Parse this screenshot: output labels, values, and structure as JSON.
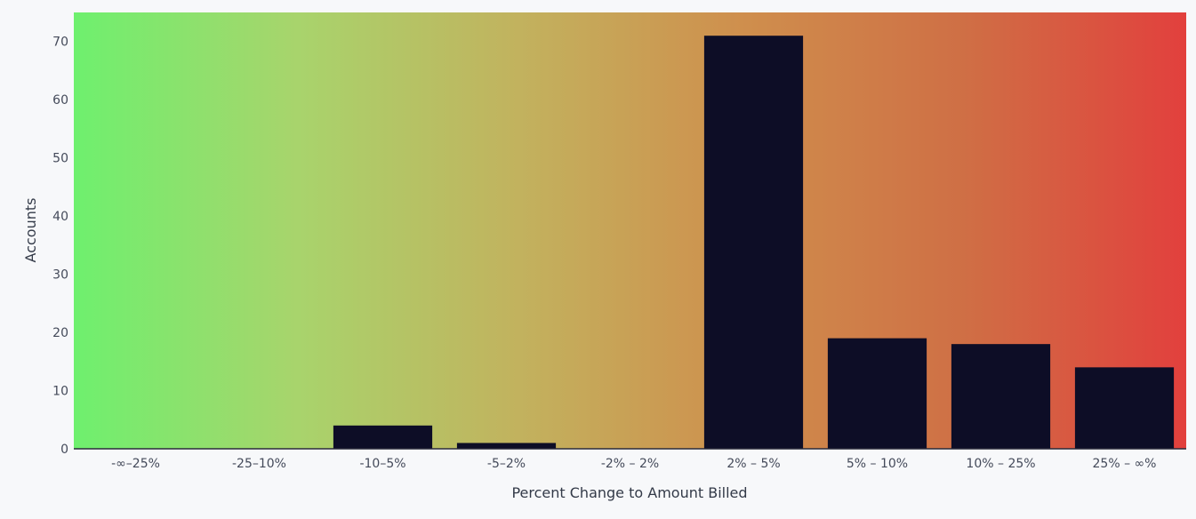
{
  "chart_data": {
    "type": "bar",
    "title": "",
    "xlabel": "Percent Change to Amount Billed",
    "ylabel": "Accounts",
    "categories": [
      "-∞–25%",
      "-25–10%",
      "-10–5%",
      "-5–2%",
      "-2% – 2%",
      "2% – 5%",
      "5% – 10%",
      "10% – 25%",
      "25% – ∞%"
    ],
    "values": [
      0,
      0,
      4,
      1,
      0,
      71,
      19,
      18,
      14
    ],
    "ylim": [
      0,
      75
    ],
    "yticks": [
      0,
      10,
      20,
      30,
      40,
      50,
      60,
      70
    ],
    "grid": false,
    "bar_color": "#0d0d26",
    "background_gradient": [
      "#6ef06e",
      "#a8d46c",
      "#c2b25e",
      "#cf8f4d",
      "#cf6f45",
      "#e2403d"
    ]
  }
}
